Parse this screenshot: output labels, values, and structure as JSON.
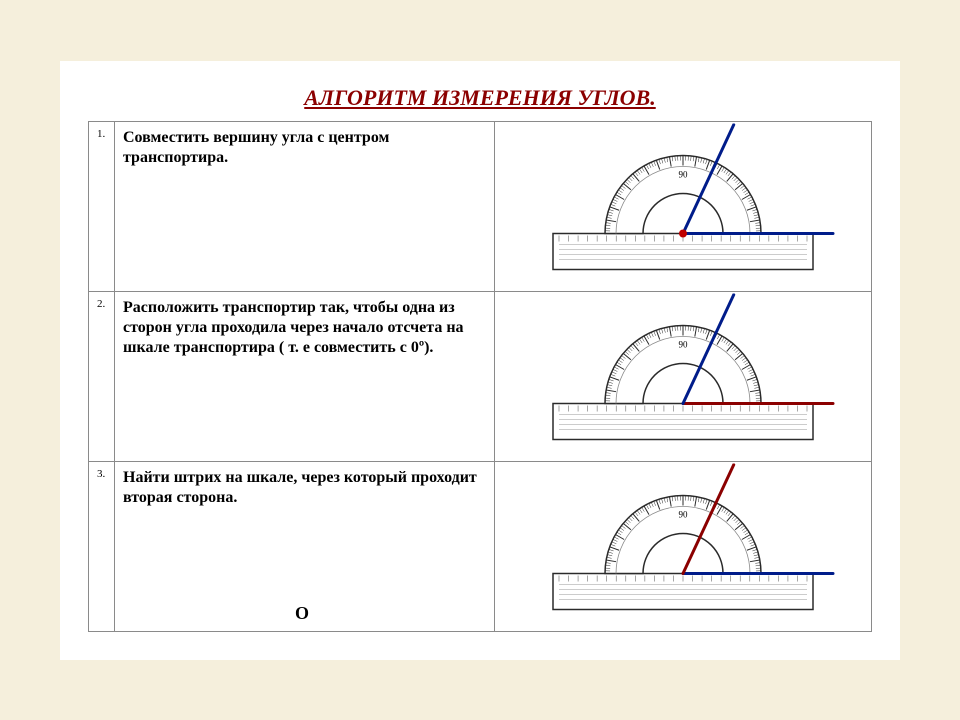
{
  "title": {
    "text": "АЛГОРИТМ ИЗМЕРЕНИЯ УГЛОВ.",
    "color": "#8b0000",
    "fontsize": 22
  },
  "page_background": "#f5efdc",
  "sheet_background": "#ffffff",
  "table_border_color": "#8a8a8a",
  "protractor": {
    "outline_color": "#2a2a2a",
    "tick_color": "#2a2a2a",
    "label_90": "90",
    "center_dot_color": "#c00000",
    "arc_outer_r": 78,
    "arc_inner_r": 40,
    "base_width": 260,
    "base_height": 36
  },
  "rows": [
    {
      "num": "1.",
      "text": "Совместить вершину  угла с центром транспортира.",
      "rays": [
        {
          "angle_deg": 0,
          "color": "#001c8a",
          "width": 3,
          "len": 150
        },
        {
          "angle_deg": 65,
          "color": "#001c8a",
          "width": 3,
          "len": 120
        }
      ],
      "show_center_dot": true
    },
    {
      "num": "2.",
      "text": "Расположить транспортир так, чтобы одна из сторон угла проходила через начало отсчета на шкале транспортира ( т. е совместить с 0º).",
      "rays": [
        {
          "angle_deg": 0,
          "color": "#8b0000",
          "width": 3,
          "len": 150
        },
        {
          "angle_deg": 65,
          "color": "#001c8a",
          "width": 3,
          "len": 120
        }
      ],
      "show_center_dot": false
    },
    {
      "num": "3.",
      "text": "Найти штрих на шкале, через который проходит вторая сторона.",
      "rays": [
        {
          "angle_deg": 0,
          "color": "#001c8a",
          "width": 3,
          "len": 150
        },
        {
          "angle_deg": 65,
          "color": "#8b0000",
          "width": 3,
          "len": 120
        }
      ],
      "show_center_dot": false,
      "extra_label": "О"
    }
  ]
}
